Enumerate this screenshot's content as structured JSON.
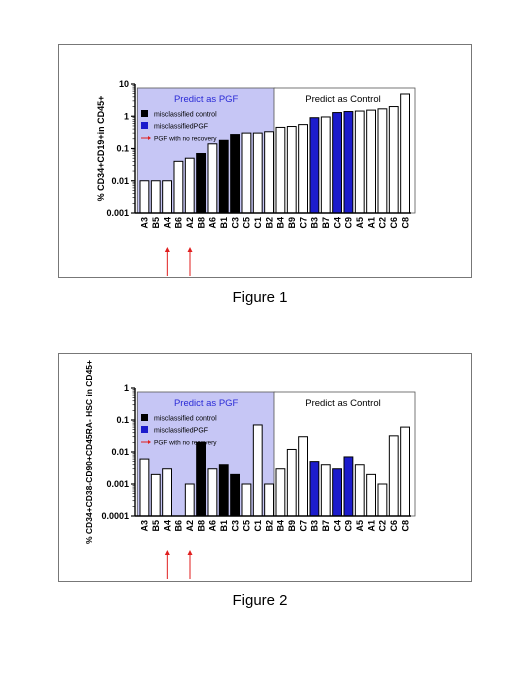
{
  "figures": [
    {
      "caption": "Figure 1",
      "chart_data": {
        "type": "bar",
        "ylabel": "% CD34+CD19+in CD45+",
        "yscale": "log",
        "ylim": [
          0.001,
          10
        ],
        "yticks": [
          "0.001",
          "0.01",
          "0.1",
          "1",
          "10"
        ],
        "categories": [
          "A3",
          "B5",
          "A4",
          "B6",
          "A2",
          "B8",
          "A6",
          "B1",
          "C3",
          "C5",
          "C1",
          "B2",
          "B4",
          "B9",
          "C7",
          "B3",
          "B7",
          "C4",
          "C9",
          "A5",
          "A1",
          "C2",
          "C6",
          "C8"
        ],
        "values": [
          0.01,
          0.01,
          0.01,
          0.04,
          0.05,
          0.07,
          0.14,
          0.18,
          0.27,
          0.3,
          0.3,
          0.33,
          0.45,
          0.48,
          0.55,
          0.9,
          0.95,
          1.3,
          1.4,
          1.45,
          1.55,
          1.7,
          2.0,
          4.9
        ],
        "fills": [
          "w",
          "w",
          "w",
          "w",
          "w",
          "k",
          "w",
          "k",
          "k",
          "w",
          "w",
          "w",
          "w",
          "w",
          "w",
          "b",
          "w",
          "b",
          "b",
          "w",
          "w",
          "w",
          "w",
          "w"
        ],
        "regions": [
          {
            "label": "Predict as PGF",
            "from": 0,
            "to": 11,
            "shaded": true
          },
          {
            "label": "Predict as Control",
            "from": 12,
            "to": 23,
            "shaded": false
          }
        ],
        "legend": [
          {
            "label": "misclassified control",
            "marker": "black-square"
          },
          {
            "label": "misclassifiedPGF",
            "marker": "blue-square"
          },
          {
            "label": "PGF with no recovery",
            "marker": "red-arrow"
          }
        ],
        "arrows_at": [
          "A4",
          "A2"
        ],
        "legend_position": "top-left"
      }
    },
    {
      "caption": "Figure 2",
      "chart_data": {
        "type": "bar",
        "ylabel": "% CD34+CD38-CD90+CD45RA- HSC in CD45+",
        "yscale": "log",
        "ylim": [
          0.0001,
          1
        ],
        "yticks": [
          "0.0001",
          "0.001",
          "0.01",
          "0.1",
          "1"
        ],
        "categories": [
          "A3",
          "B5",
          "A4",
          "B6",
          "A2",
          "B8",
          "A6",
          "B1",
          "C3",
          "C5",
          "C1",
          "B2",
          "B4",
          "B9",
          "C7",
          "B3",
          "B7",
          "C4",
          "C9",
          "A5",
          "A1",
          "C2",
          "C6",
          "C8"
        ],
        "values": [
          0.006,
          0.002,
          0.003,
          null,
          0.001,
          0.02,
          0.003,
          0.004,
          0.002,
          0.001,
          0.07,
          0.001,
          0.003,
          0.012,
          0.03,
          0.005,
          0.004,
          0.003,
          0.007,
          0.004,
          0.002,
          0.001,
          0.032,
          0.06
        ],
        "fills": [
          "w",
          "w",
          "w",
          "w",
          "w",
          "k",
          "w",
          "k",
          "k",
          "w",
          "w",
          "w",
          "w",
          "w",
          "w",
          "b",
          "w",
          "b",
          "b",
          "w",
          "w",
          "w",
          "w",
          "w"
        ],
        "regions": [
          {
            "label": "Predict as PGF",
            "from": 0,
            "to": 11,
            "shaded": true
          },
          {
            "label": "Predict as Control",
            "from": 12,
            "to": 23,
            "shaded": false
          }
        ],
        "legend": [
          {
            "label": "misclassified control",
            "marker": "black-square"
          },
          {
            "label": "misclassifiedPGF",
            "marker": "blue-square"
          },
          {
            "label": "PGF with no recovery",
            "marker": "red-arrow"
          }
        ],
        "arrows_at": [
          "A4",
          "A2"
        ],
        "legend_position": "top-left"
      }
    }
  ],
  "colors": {
    "pgf_region": "#c6c6f5",
    "misclassified_control": "#000000",
    "misclassified_pgf": "#1c1ccc",
    "arrow": "#e01e1e",
    "pgf_label": "#2a2ad6"
  }
}
